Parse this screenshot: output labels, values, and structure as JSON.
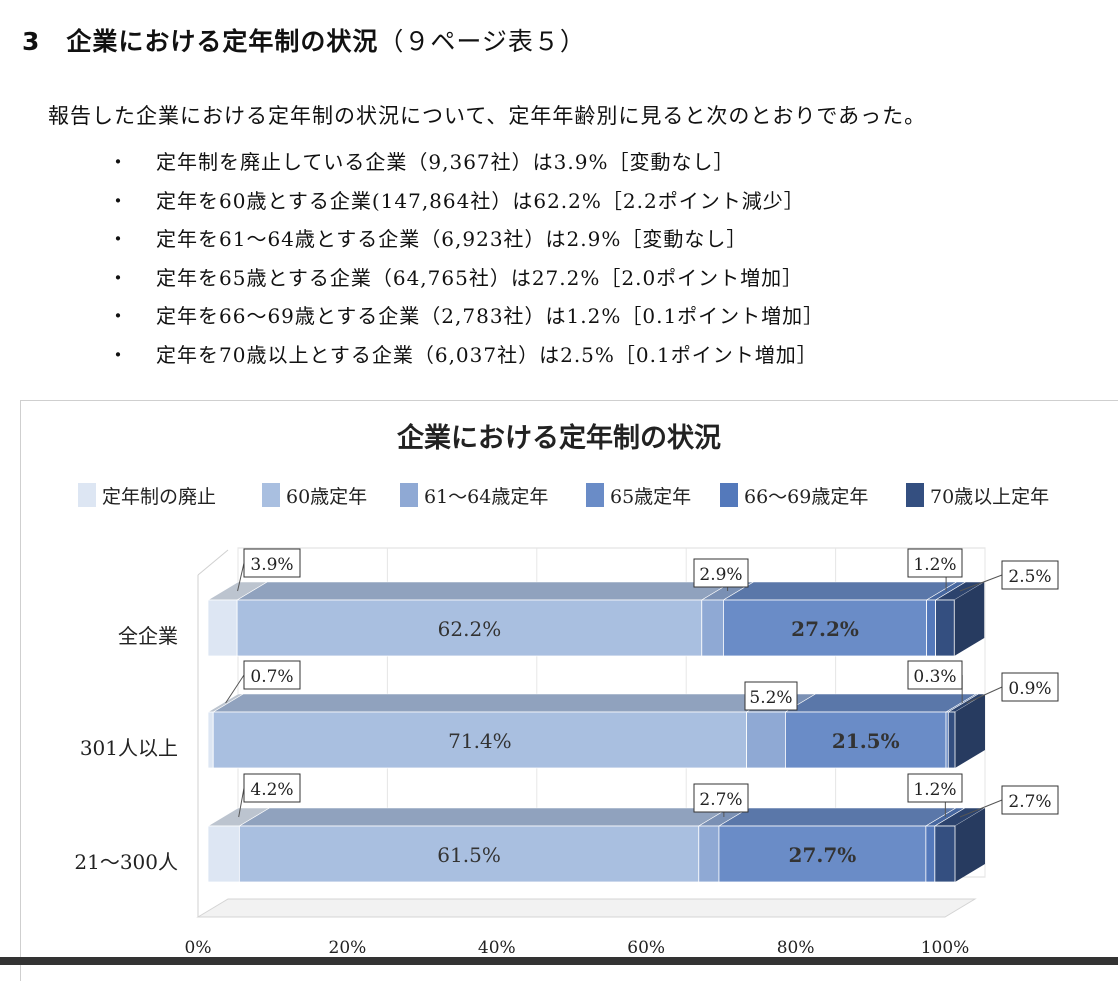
{
  "heading": {
    "number": "3",
    "title": "企業における定年制の状況",
    "ref": "（９ページ表５）"
  },
  "intro": "報告した企業における定年制の状況について、定年年齢別に見ると次のとおりであった。",
  "bullet_marker": "・",
  "bullets": [
    "定年制を廃止している企業（9,367社）は3.9%［変動なし］",
    "定年を60歳とする企業(147,864社）は62.2%［2.2ポイント減少］",
    "定年を61～64歳とする企業（6,923社）は2.9%［変動なし］",
    "定年を65歳とする企業（64,765社）は27.2%［2.0ポイント増加］",
    "定年を66～69歳とする企業（2,783社）は1.2%［0.1ポイント増加］",
    "定年を70歳以上とする企業（6,037社）は2.5%［0.1ポイント増加］"
  ],
  "chart_data": {
    "type": "bar",
    "orientation": "horizontal-stacked-100",
    "title": "企業における定年制の状況",
    "categories": [
      "全企業",
      "301人以上",
      "21～300人"
    ],
    "series": [
      {
        "name": "定年制の廃止",
        "values": [
          3.9,
          0.7,
          4.2
        ],
        "labels": [
          "3.9%",
          "0.7%",
          "4.2%"
        ],
        "color": "#dde6f3"
      },
      {
        "name": "60歳定年",
        "values": [
          62.2,
          71.4,
          61.5
        ],
        "labels": [
          "62.2%",
          "71.4%",
          "61.5%"
        ],
        "color": "#a9bfe0"
      },
      {
        "name": "61～64歳定年",
        "values": [
          2.9,
          5.2,
          2.7
        ],
        "labels": [
          "2.9%",
          "5.2%",
          "2.7%"
        ],
        "color": "#8fa9d4"
      },
      {
        "name": "65歳定年",
        "values": [
          27.2,
          21.5,
          27.7
        ],
        "labels": [
          "27.2%",
          "21.5%",
          "27.7%"
        ],
        "color": "#6a8cc7"
      },
      {
        "name": "66～69歳定年",
        "values": [
          1.2,
          0.3,
          1.2
        ],
        "labels": [
          "1.2%",
          "0.3%",
          "1.2%"
        ],
        "color": "#5479bb"
      },
      {
        "name": "70歳以上定年",
        "values": [
          2.5,
          0.9,
          2.7
        ],
        "labels": [
          "2.5%",
          "0.9%",
          "2.7%"
        ],
        "color": "#344f80"
      }
    ],
    "x_ticks": [
      "0%",
      "20%",
      "40%",
      "60%",
      "80%",
      "100%"
    ],
    "xlim": [
      0,
      100
    ],
    "legend": "top",
    "grid": true
  }
}
